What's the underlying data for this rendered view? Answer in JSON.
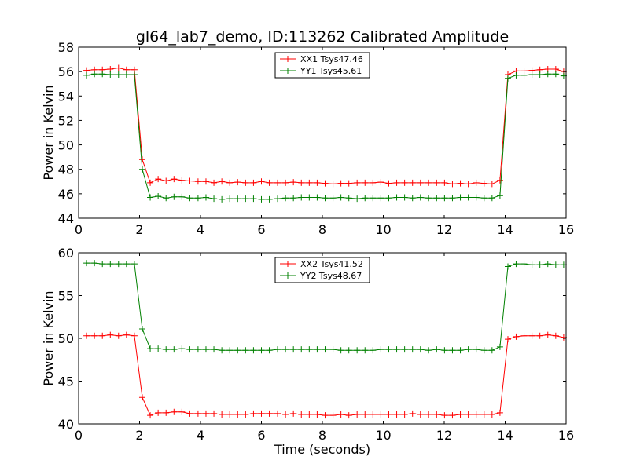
{
  "title": "gl64_lab7_demo, ID:113262 Calibrated Amplitude",
  "chart_data": [
    {
      "type": "line",
      "xlabel": "",
      "ylabel": "Power in Kelvin",
      "xlim": [
        0,
        16
      ],
      "ylim": [
        44,
        58
      ],
      "xticks": [
        0,
        2,
        4,
        6,
        8,
        10,
        12,
        14,
        16
      ],
      "yticks": [
        44,
        46,
        48,
        50,
        52,
        54,
        56,
        58
      ],
      "legend_position": "upper-center",
      "series": [
        {
          "name": "XX1 Tsys47.46",
          "color": "#ff0000",
          "x": [
            0.26,
            0.52,
            0.78,
            1.04,
            1.31,
            1.57,
            1.83,
            2.09,
            2.35,
            2.61,
            2.87,
            3.13,
            3.39,
            3.65,
            3.92,
            4.18,
            4.44,
            4.7,
            4.96,
            5.22,
            5.48,
            5.74,
            6.0,
            6.26,
            6.53,
            6.79,
            7.05,
            7.31,
            7.57,
            7.83,
            8.09,
            8.35,
            8.61,
            8.87,
            9.14,
            9.4,
            9.66,
            9.92,
            10.18,
            10.44,
            10.7,
            10.96,
            11.22,
            11.48,
            11.75,
            12.01,
            12.27,
            12.53,
            12.79,
            13.05,
            13.31,
            13.57,
            13.83,
            14.09,
            14.36,
            14.62,
            14.88,
            15.14,
            15.4,
            15.66,
            15.92
          ],
          "y": [
            56.1,
            56.15,
            56.15,
            56.2,
            56.3,
            56.15,
            56.15,
            48.8,
            46.9,
            47.2,
            47.05,
            47.2,
            47.1,
            47.05,
            47.0,
            47.0,
            46.9,
            47.0,
            46.9,
            46.95,
            46.9,
            46.9,
            47.0,
            46.9,
            46.9,
            46.9,
            46.95,
            46.9,
            46.9,
            46.9,
            46.85,
            46.8,
            46.85,
            46.85,
            46.9,
            46.9,
            46.9,
            46.95,
            46.85,
            46.9,
            46.9,
            46.9,
            46.9,
            46.9,
            46.9,
            46.9,
            46.8,
            46.85,
            46.8,
            46.9,
            46.85,
            46.8,
            47.1,
            55.75,
            56.05,
            56.05,
            56.1,
            56.15,
            56.2,
            56.2,
            56.0
          ]
        },
        {
          "name": "YY1 Tsys45.61",
          "color": "#008000",
          "x": [
            0.26,
            0.52,
            0.78,
            1.04,
            1.31,
            1.57,
            1.83,
            2.09,
            2.35,
            2.61,
            2.87,
            3.13,
            3.39,
            3.65,
            3.92,
            4.18,
            4.44,
            4.7,
            4.96,
            5.22,
            5.48,
            5.74,
            6.0,
            6.26,
            6.53,
            6.79,
            7.05,
            7.31,
            7.57,
            7.83,
            8.09,
            8.35,
            8.61,
            8.87,
            9.14,
            9.4,
            9.66,
            9.92,
            10.18,
            10.44,
            10.7,
            10.96,
            11.22,
            11.48,
            11.75,
            12.01,
            12.27,
            12.53,
            12.79,
            13.05,
            13.31,
            13.57,
            13.83,
            14.09,
            14.36,
            14.62,
            14.88,
            15.14,
            15.4,
            15.66,
            15.92
          ],
          "y": [
            55.7,
            55.8,
            55.8,
            55.75,
            55.75,
            55.75,
            55.75,
            48.0,
            45.7,
            45.8,
            45.65,
            45.75,
            45.75,
            45.65,
            45.65,
            45.7,
            45.6,
            45.55,
            45.6,
            45.6,
            45.6,
            45.6,
            45.55,
            45.55,
            45.6,
            45.65,
            45.65,
            45.7,
            45.7,
            45.7,
            45.65,
            45.65,
            45.7,
            45.65,
            45.6,
            45.65,
            45.65,
            45.65,
            45.65,
            45.7,
            45.7,
            45.65,
            45.7,
            45.65,
            45.65,
            45.65,
            45.65,
            45.7,
            45.7,
            45.7,
            45.65,
            45.65,
            45.85,
            55.45,
            55.7,
            55.7,
            55.75,
            55.75,
            55.8,
            55.8,
            55.65
          ]
        }
      ]
    },
    {
      "type": "line",
      "xlabel": "Time (seconds)",
      "ylabel": "Power in Kelvin",
      "xlim": [
        0,
        16
      ],
      "ylim": [
        40,
        60
      ],
      "xticks": [
        0,
        2,
        4,
        6,
        8,
        10,
        12,
        14,
        16
      ],
      "yticks": [
        40,
        45,
        50,
        55,
        60
      ],
      "legend_position": "upper-center",
      "series": [
        {
          "name": "XX2 Tsys41.52",
          "color": "#ff0000",
          "x": [
            0.26,
            0.52,
            0.78,
            1.04,
            1.31,
            1.57,
            1.83,
            2.09,
            2.35,
            2.61,
            2.87,
            3.13,
            3.39,
            3.65,
            3.92,
            4.18,
            4.44,
            4.7,
            4.96,
            5.22,
            5.48,
            5.74,
            6.0,
            6.26,
            6.53,
            6.79,
            7.05,
            7.31,
            7.57,
            7.83,
            8.09,
            8.35,
            8.61,
            8.87,
            9.14,
            9.4,
            9.66,
            9.92,
            10.18,
            10.44,
            10.7,
            10.96,
            11.22,
            11.48,
            11.75,
            12.01,
            12.27,
            12.53,
            12.79,
            13.05,
            13.31,
            13.57,
            13.83,
            14.09,
            14.36,
            14.62,
            14.88,
            15.14,
            15.4,
            15.66,
            15.92
          ],
          "y": [
            50.3,
            50.3,
            50.3,
            50.4,
            50.3,
            50.4,
            50.3,
            43.1,
            41.0,
            41.3,
            41.3,
            41.4,
            41.4,
            41.2,
            41.2,
            41.2,
            41.2,
            41.1,
            41.1,
            41.1,
            41.1,
            41.2,
            41.2,
            41.2,
            41.2,
            41.1,
            41.2,
            41.1,
            41.1,
            41.1,
            41.0,
            41.0,
            41.1,
            41.0,
            41.1,
            41.1,
            41.1,
            41.1,
            41.1,
            41.1,
            41.1,
            41.2,
            41.1,
            41.1,
            41.1,
            41.0,
            41.0,
            41.1,
            41.1,
            41.1,
            41.1,
            41.1,
            41.3,
            49.9,
            50.2,
            50.3,
            50.3,
            50.3,
            50.4,
            50.3,
            50.1
          ]
        },
        {
          "name": "YY2 Tsys48.67",
          "color": "#008000",
          "x": [
            0.26,
            0.52,
            0.78,
            1.04,
            1.31,
            1.57,
            1.83,
            2.09,
            2.35,
            2.61,
            2.87,
            3.13,
            3.39,
            3.65,
            3.92,
            4.18,
            4.44,
            4.7,
            4.96,
            5.22,
            5.48,
            5.74,
            6.0,
            6.26,
            6.53,
            6.79,
            7.05,
            7.31,
            7.57,
            7.83,
            8.09,
            8.35,
            8.61,
            8.87,
            9.14,
            9.4,
            9.66,
            9.92,
            10.18,
            10.44,
            10.7,
            10.96,
            11.22,
            11.48,
            11.75,
            12.01,
            12.27,
            12.53,
            12.79,
            13.05,
            13.31,
            13.57,
            13.83,
            14.09,
            14.36,
            14.62,
            14.88,
            15.14,
            15.4,
            15.66,
            15.92
          ],
          "y": [
            58.8,
            58.8,
            58.7,
            58.7,
            58.7,
            58.7,
            58.7,
            51.1,
            48.8,
            48.8,
            48.7,
            48.7,
            48.8,
            48.7,
            48.7,
            48.7,
            48.7,
            48.6,
            48.6,
            48.6,
            48.6,
            48.6,
            48.6,
            48.6,
            48.7,
            48.7,
            48.7,
            48.7,
            48.7,
            48.7,
            48.7,
            48.7,
            48.6,
            48.6,
            48.6,
            48.6,
            48.6,
            48.7,
            48.7,
            48.7,
            48.7,
            48.7,
            48.7,
            48.6,
            48.7,
            48.6,
            48.6,
            48.6,
            48.7,
            48.7,
            48.6,
            48.6,
            49.0,
            58.4,
            58.7,
            58.7,
            58.6,
            58.6,
            58.7,
            58.6,
            58.6
          ]
        }
      ]
    }
  ]
}
